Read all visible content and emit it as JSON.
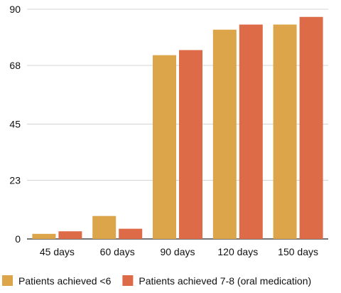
{
  "chart_data": {
    "type": "bar",
    "categories": [
      "45 days",
      "60 days",
      "90 days",
      "120 days",
      "150 days"
    ],
    "series": [
      {
        "name": "Patients achieved <6",
        "values": [
          2,
          9,
          72,
          82,
          84
        ],
        "color": "#DDA549"
      },
      {
        "name": "Patients achieved 7-8 (oral medication)",
        "values": [
          3,
          4,
          74,
          84,
          87
        ],
        "color": "#DE6B48"
      }
    ],
    "y_ticks": [
      "0",
      "23",
      "45",
      "68",
      "90"
    ],
    "ylim": [
      0,
      90
    ],
    "grid": true,
    "legend_position": "bottom-left"
  }
}
